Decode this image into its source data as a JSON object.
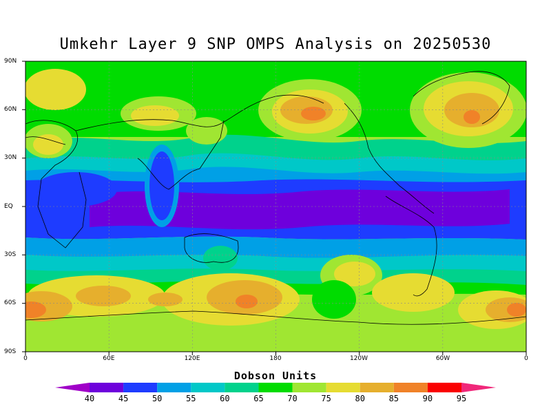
{
  "title": "Umkehr Layer 9 SNP OMPS Analysis on 20250530",
  "lat_labels": [
    "90N",
    "60N",
    "30N",
    "EQ",
    "30S",
    "60S",
    "90S"
  ],
  "lon_labels": [
    "0",
    "60E",
    "120E",
    "180",
    "120W",
    "60W",
    "0"
  ],
  "colorbar": {
    "title": "Dobson Units",
    "labels": [
      "40",
      "45",
      "50",
      "55",
      "60",
      "65",
      "70",
      "75",
      "80",
      "85",
      "90",
      "95"
    ],
    "colors": [
      "#a000c8",
      "#6e00dc",
      "#1e3cff",
      "#00a0e6",
      "#00c8c8",
      "#00d28c",
      "#00dc00",
      "#a0e632",
      "#e6dc32",
      "#e6af2d",
      "#f08228",
      "#fa0000",
      "#f0287a"
    ]
  },
  "map_data": {
    "variable": "Ozone (Umkehr Layer 9)",
    "units": "Dobson Units",
    "lat_range": [
      -90,
      90
    ],
    "lon_range": [
      0,
      360
    ],
    "grid": "dotted"
  }
}
